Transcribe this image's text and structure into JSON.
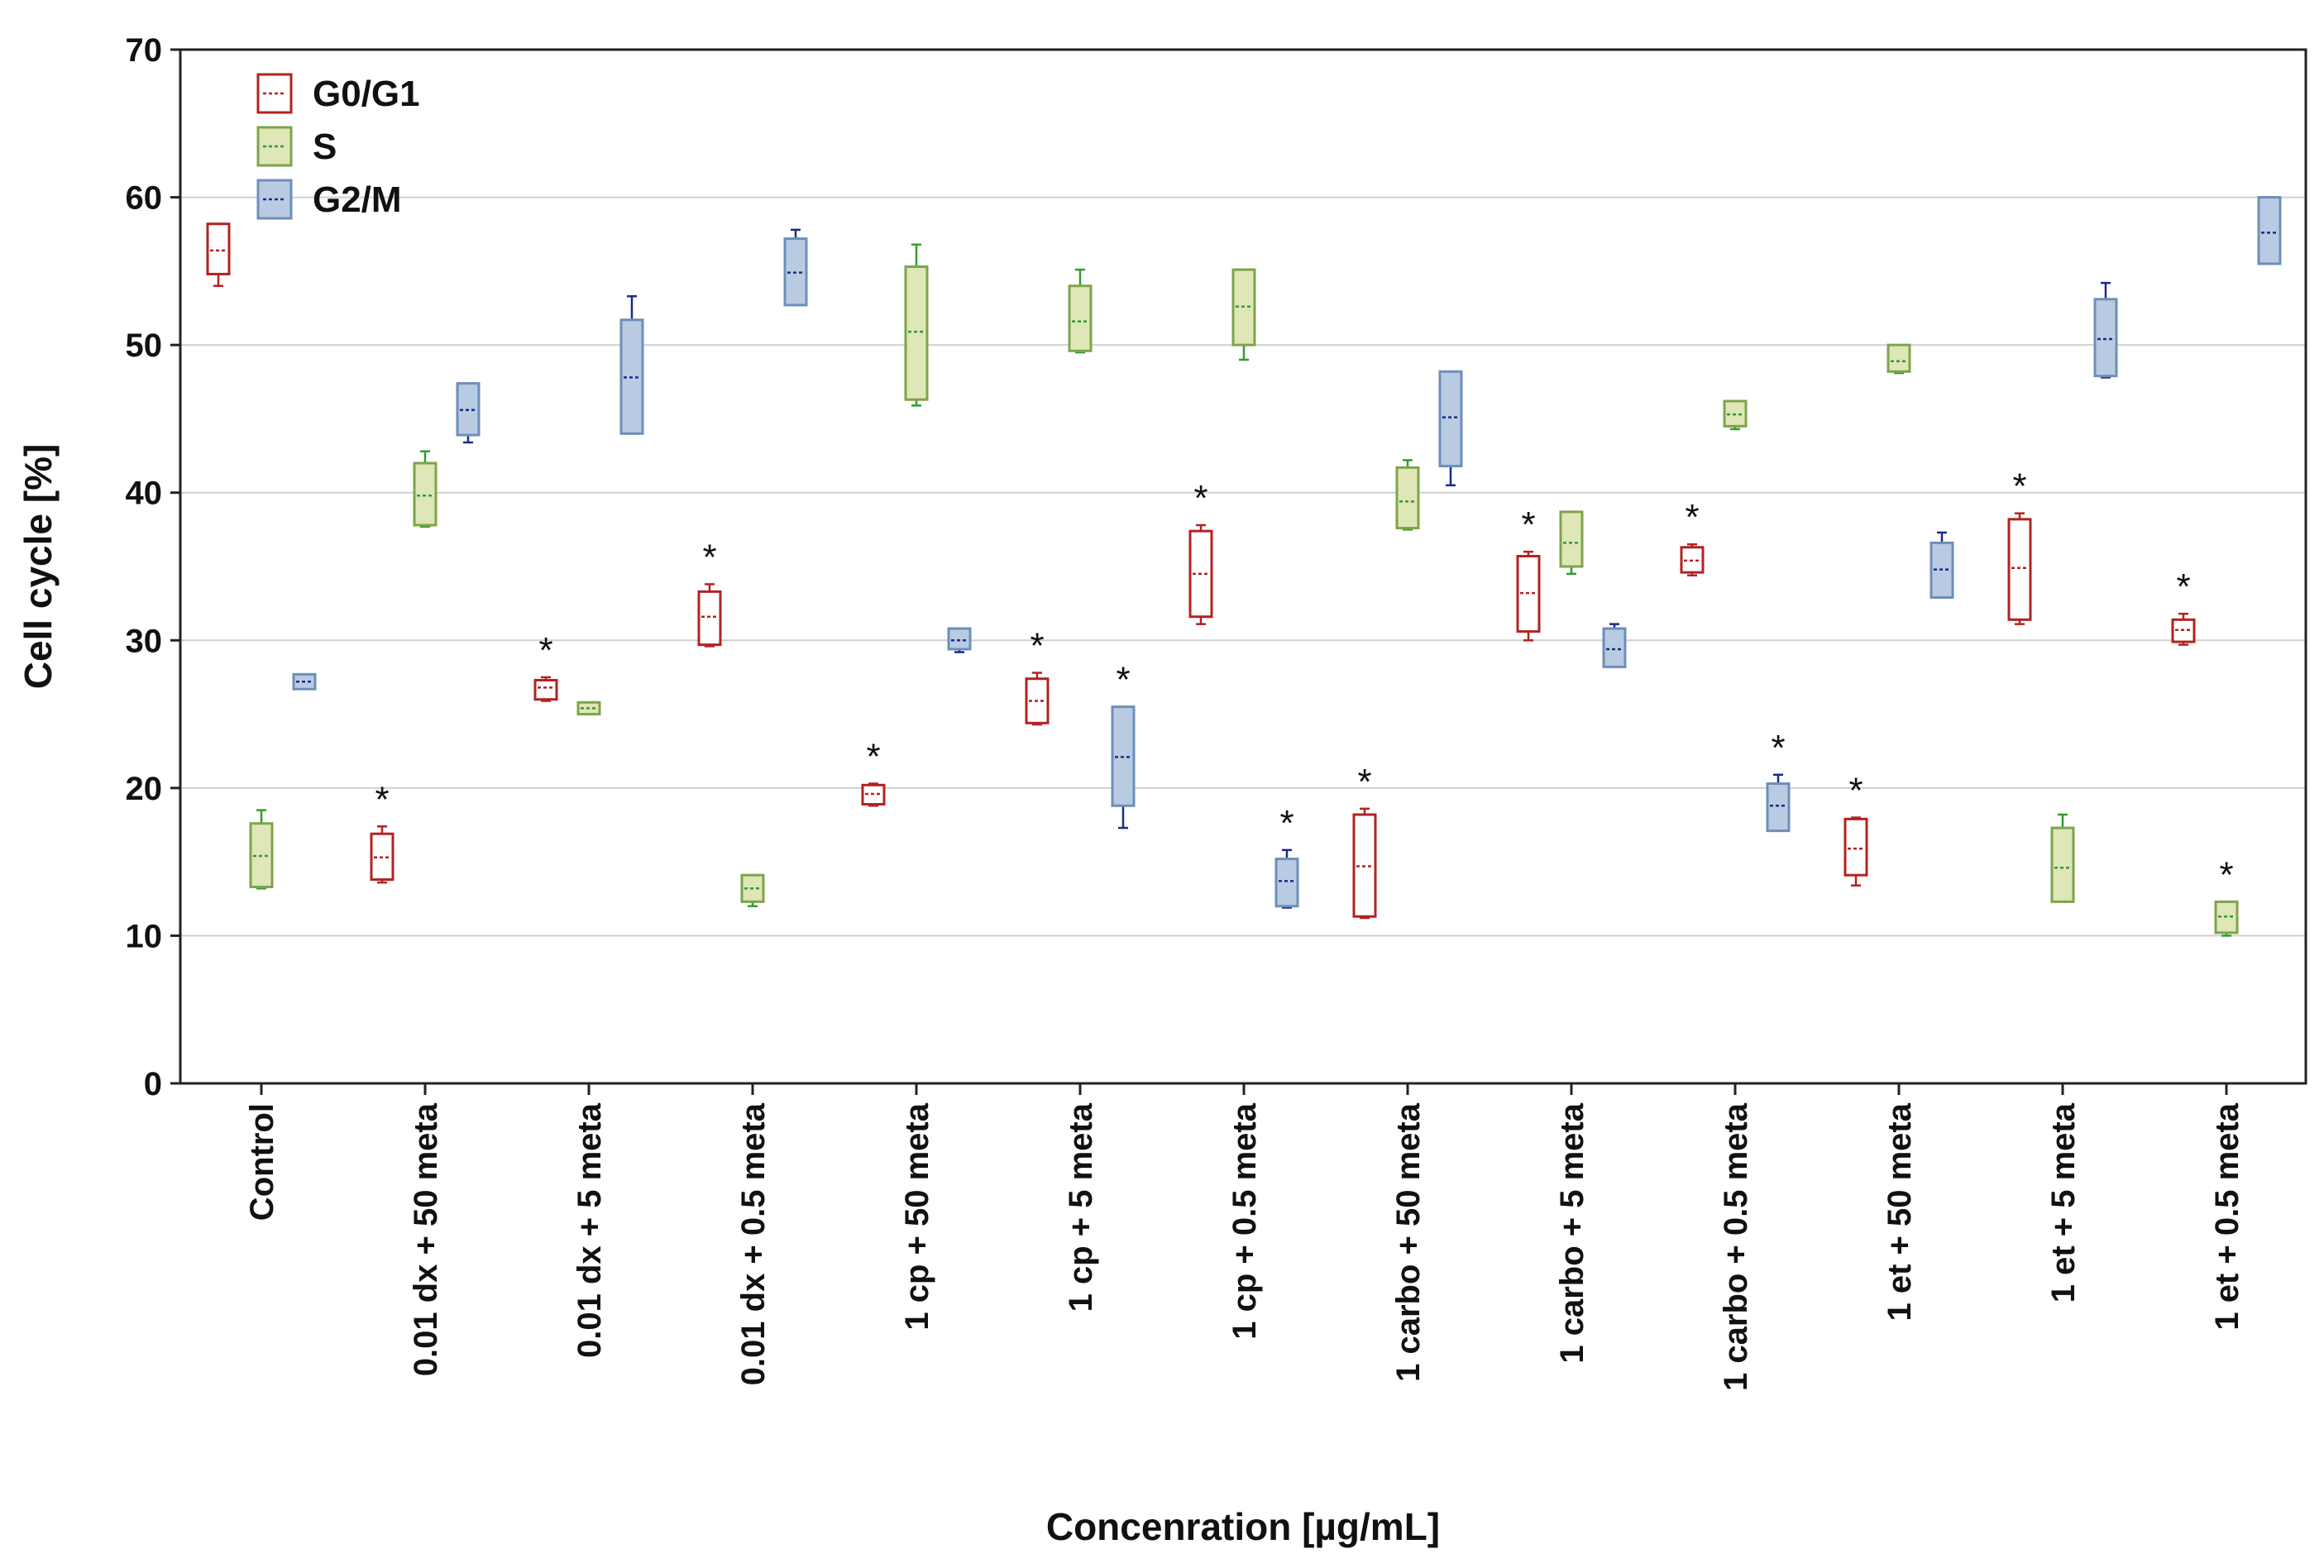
{
  "chart_data": {
    "type": "box",
    "title": "",
    "xlabel": "Concenration [µg/mL]",
    "ylabel": "Cell cycle [%]",
    "ylim": [
      0,
      70
    ],
    "yticks": [
      0,
      10,
      20,
      30,
      40,
      50,
      60,
      70
    ],
    "grid": true,
    "legend_position": "top-left",
    "categories": [
      "Control",
      "0.01 dx + 50 meta",
      "0.01 dx + 5 meta",
      "0.01 dx + 0.5 meta",
      "1 cp + 50 meta",
      "1 cp + 5 meta",
      "1 cp + 0.5 meta",
      "1 carbo + 50 meta",
      "1 carbo + 5 meta",
      "1 carbo + 0.5 meta",
      "1 et + 50 meta",
      "1 et + 5 meta",
      "1 et + 0.5 meta"
    ],
    "significance_marker": "*",
    "series": [
      {
        "name": "G0/G1",
        "stroke": "#b22222",
        "fill": "#ffffff",
        "median_color": "#b22222",
        "boxes": [
          {
            "min": 54.0,
            "q1": 54.8,
            "median": 56.4,
            "q3": 58.2,
            "max": 58.2,
            "sig": false
          },
          {
            "min": 13.6,
            "q1": 13.8,
            "median": 15.3,
            "q3": 16.9,
            "max": 17.4,
            "sig": true
          },
          {
            "min": 25.9,
            "q1": 26.0,
            "median": 26.8,
            "q3": 27.3,
            "max": 27.5,
            "sig": true
          },
          {
            "min": 29.6,
            "q1": 29.7,
            "median": 31.6,
            "q3": 33.3,
            "max": 33.8,
            "sig": true
          },
          {
            "min": 18.8,
            "q1": 18.9,
            "median": 19.6,
            "q3": 20.2,
            "max": 20.3,
            "sig": true
          },
          {
            "min": 24.3,
            "q1": 24.4,
            "median": 25.9,
            "q3": 27.4,
            "max": 27.8,
            "sig": true
          },
          {
            "min": 31.1,
            "q1": 31.6,
            "median": 34.5,
            "q3": 37.4,
            "max": 37.8,
            "sig": true
          },
          {
            "min": 11.2,
            "q1": 11.3,
            "median": 14.7,
            "q3": 18.2,
            "max": 18.6,
            "sig": true
          },
          {
            "min": 30.0,
            "q1": 30.6,
            "median": 33.2,
            "q3": 35.7,
            "max": 36.0,
            "sig": true
          },
          {
            "min": 34.4,
            "q1": 34.6,
            "median": 35.4,
            "q3": 36.3,
            "max": 36.5,
            "sig": true
          },
          {
            "min": 13.4,
            "q1": 14.1,
            "median": 15.9,
            "q3": 17.9,
            "max": 18.0,
            "sig": true
          },
          {
            "min": 31.1,
            "q1": 31.4,
            "median": 34.9,
            "q3": 38.2,
            "max": 38.6,
            "sig": true
          },
          {
            "min": 29.7,
            "q1": 29.9,
            "median": 30.7,
            "q3": 31.4,
            "max": 31.8,
            "sig": true
          }
        ]
      },
      {
        "name": "S",
        "stroke": "#7ea44a",
        "fill": "#dfe6b8",
        "median_color": "#2e9e2e",
        "boxes": [
          {
            "min": 13.2,
            "q1": 13.3,
            "median": 15.4,
            "q3": 17.6,
            "max": 18.5,
            "sig": false
          },
          {
            "min": 37.7,
            "q1": 37.8,
            "median": 39.8,
            "q3": 42.0,
            "max": 42.8,
            "sig": false
          },
          {
            "min": 25.0,
            "q1": 25.0,
            "median": 25.4,
            "q3": 25.8,
            "max": 25.8,
            "sig": false
          },
          {
            "min": 12.0,
            "q1": 12.3,
            "median": 13.2,
            "q3": 14.1,
            "max": 14.1,
            "sig": false
          },
          {
            "min": 45.9,
            "q1": 46.3,
            "median": 50.9,
            "q3": 55.3,
            "max": 56.8,
            "sig": false
          },
          {
            "min": 49.5,
            "q1": 49.6,
            "median": 51.6,
            "q3": 54.0,
            "max": 55.1,
            "sig": false
          },
          {
            "min": 49.0,
            "q1": 50.0,
            "median": 52.6,
            "q3": 55.1,
            "max": 55.1,
            "sig": false
          },
          {
            "min": 37.5,
            "q1": 37.6,
            "median": 39.4,
            "q3": 41.7,
            "max": 42.2,
            "sig": false
          },
          {
            "min": 34.5,
            "q1": 35.0,
            "median": 36.6,
            "q3": 38.7,
            "max": 38.7,
            "sig": false
          },
          {
            "min": 44.3,
            "q1": 44.5,
            "median": 45.3,
            "q3": 46.2,
            "max": 46.2,
            "sig": false
          },
          {
            "min": 48.1,
            "q1": 48.2,
            "median": 48.9,
            "q3": 50.0,
            "max": 50.0,
            "sig": false
          },
          {
            "min": 12.3,
            "q1": 12.3,
            "median": 14.6,
            "q3": 17.3,
            "max": 18.2,
            "sig": false
          },
          {
            "min": 10.0,
            "q1": 10.2,
            "median": 11.3,
            "q3": 12.3,
            "max": 12.3,
            "sig": true
          }
        ]
      },
      {
        "name": "G2/M",
        "stroke": "#6d8fb8",
        "fill": "#b9cbe3",
        "median_color": "#1a2b8a",
        "boxes": [
          {
            "min": 26.7,
            "q1": 26.7,
            "median": 27.2,
            "q3": 27.7,
            "max": 27.7,
            "sig": false
          },
          {
            "min": 43.4,
            "q1": 43.9,
            "median": 45.6,
            "q3": 47.4,
            "max": 47.4,
            "sig": false
          },
          {
            "min": 44.0,
            "q1": 44.0,
            "median": 47.8,
            "q3": 51.7,
            "max": 53.3,
            "sig": false
          },
          {
            "min": 52.7,
            "q1": 52.7,
            "median": 54.9,
            "q3": 57.2,
            "max": 57.8,
            "sig": false
          },
          {
            "min": 29.2,
            "q1": 29.4,
            "median": 30.0,
            "q3": 30.8,
            "max": 30.8,
            "sig": false
          },
          {
            "min": 17.3,
            "q1": 18.8,
            "median": 22.1,
            "q3": 25.5,
            "max": 25.5,
            "sig": true
          },
          {
            "min": 11.9,
            "q1": 12.0,
            "median": 13.7,
            "q3": 15.2,
            "max": 15.8,
            "sig": true
          },
          {
            "min": 40.5,
            "q1": 41.8,
            "median": 45.1,
            "q3": 48.2,
            "max": 48.2,
            "sig": false
          },
          {
            "min": 28.2,
            "q1": 28.2,
            "median": 29.4,
            "q3": 30.8,
            "max": 31.1,
            "sig": false
          },
          {
            "min": 17.1,
            "q1": 17.1,
            "median": 18.8,
            "q3": 20.3,
            "max": 20.9,
            "sig": true
          },
          {
            "min": 32.9,
            "q1": 32.9,
            "median": 34.8,
            "q3": 36.6,
            "max": 37.3,
            "sig": false
          },
          {
            "min": 47.8,
            "q1": 47.9,
            "median": 50.4,
            "q3": 53.1,
            "max": 54.2,
            "sig": false
          },
          {
            "min": 55.5,
            "q1": 55.5,
            "median": 57.6,
            "q3": 60.0,
            "max": 60.0,
            "sig": false
          }
        ]
      }
    ]
  }
}
